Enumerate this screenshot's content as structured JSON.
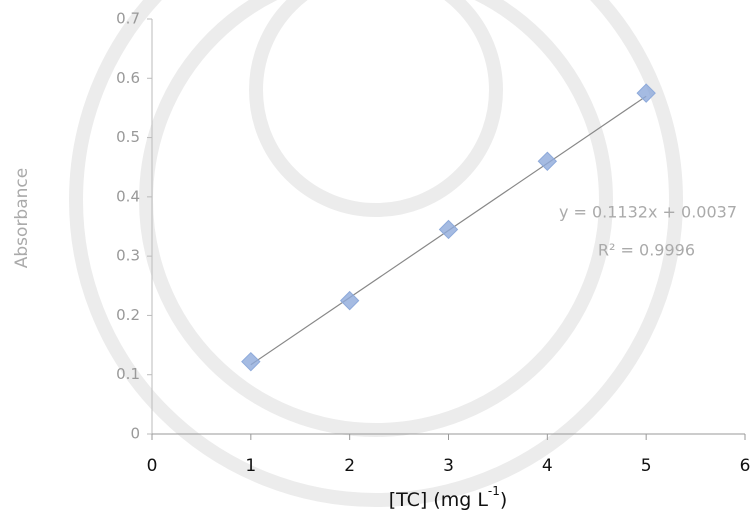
{
  "chart_data": {
    "type": "scatter",
    "ylabel": "Absorbance",
    "xlabel": [
      "[TC]  (mg L",
      "-1",
      ")"
    ],
    "x": [
      1,
      2,
      3,
      4,
      5
    ],
    "series": [
      {
        "name": "Absorbance",
        "color": "#8eaadb",
        "values": [
          0.122,
          0.225,
          0.345,
          0.46,
          0.575
        ]
      }
    ],
    "trendline": {
      "slope": 0.1132,
      "intercept": 0.0037,
      "equation": "y = 0.1132x + 0.0037",
      "r_squared": "R² = 0.9996",
      "color": "#888888"
    },
    "xlim": [
      0,
      6
    ],
    "xticks": [
      0,
      1,
      2,
      3,
      4,
      5,
      6
    ],
    "ylim": [
      0,
      0.7
    ],
    "yticks": [
      0,
      0.1,
      0.2,
      0.3,
      0.4,
      0.5,
      0.6,
      0.7
    ]
  }
}
